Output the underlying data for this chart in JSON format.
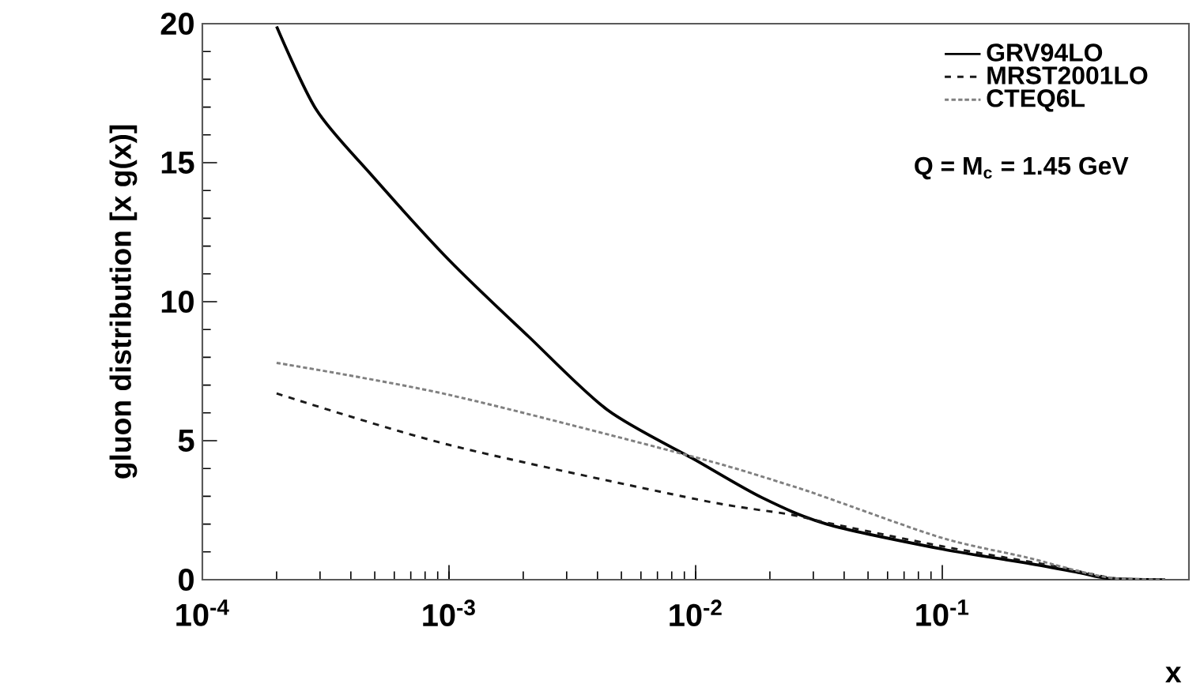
{
  "chart_data": {
    "type": "line",
    "xlabel": "x",
    "ylabel": "gluon distribution [x g(x)]",
    "annotations": [
      "Q = M$_{c}$ = 1.45 GeV"
    ],
    "log": "x",
    "xlim": [
      0.0001,
      1
    ],
    "ylim": [
      0,
      20
    ],
    "xticks": [
      {
        "value": 0.0001,
        "label": "10$^{-4}$"
      },
      {
        "value": 0.001,
        "label": "10$^{-3}$"
      },
      {
        "value": 0.01,
        "label": "10$^{-2}$"
      },
      {
        "value": 0.1,
        "label": "10$^{-1}$"
      }
    ],
    "yticks": [
      0,
      5,
      10,
      15,
      20
    ],
    "grid": false,
    "legend": "top right",
    "series": [
      {
        "name": "GRV94LO",
        "color": "#000000",
        "line_style": "solid",
        "x": [
          0.0002,
          0.00029,
          0.00048,
          0.001,
          0.0021,
          0.0044,
          0.01,
          0.0186,
          0.034,
          0.1,
          0.22,
          0.36,
          0.47,
          0.8
        ],
        "values": [
          19.9,
          16.9,
          14.6,
          11.5,
          8.75,
          6.1,
          4.3,
          2.95,
          2.0,
          1.1,
          0.6,
          0.25,
          0.05,
          0.0
        ]
      },
      {
        "name": "MRST2001LO",
        "color": "#1a1a1a",
        "line_style": "dashed",
        "x": [
          0.0002,
          0.001,
          0.01,
          0.024,
          0.034,
          0.1,
          0.28,
          0.5,
          0.8
        ],
        "values": [
          6.7,
          4.85,
          2.9,
          2.35,
          2.05,
          1.2,
          0.5,
          0.05,
          0.0
        ]
      },
      {
        "name": "CTEQ6L",
        "color": "#808080",
        "line_style": "dotted",
        "x": [
          0.0002,
          0.001,
          0.01,
          0.024,
          0.034,
          0.1,
          0.22,
          0.36,
          0.5,
          0.8
        ],
        "values": [
          7.8,
          6.65,
          4.4,
          3.4,
          2.95,
          1.5,
          0.8,
          0.3,
          0.05,
          0.0
        ]
      }
    ]
  }
}
